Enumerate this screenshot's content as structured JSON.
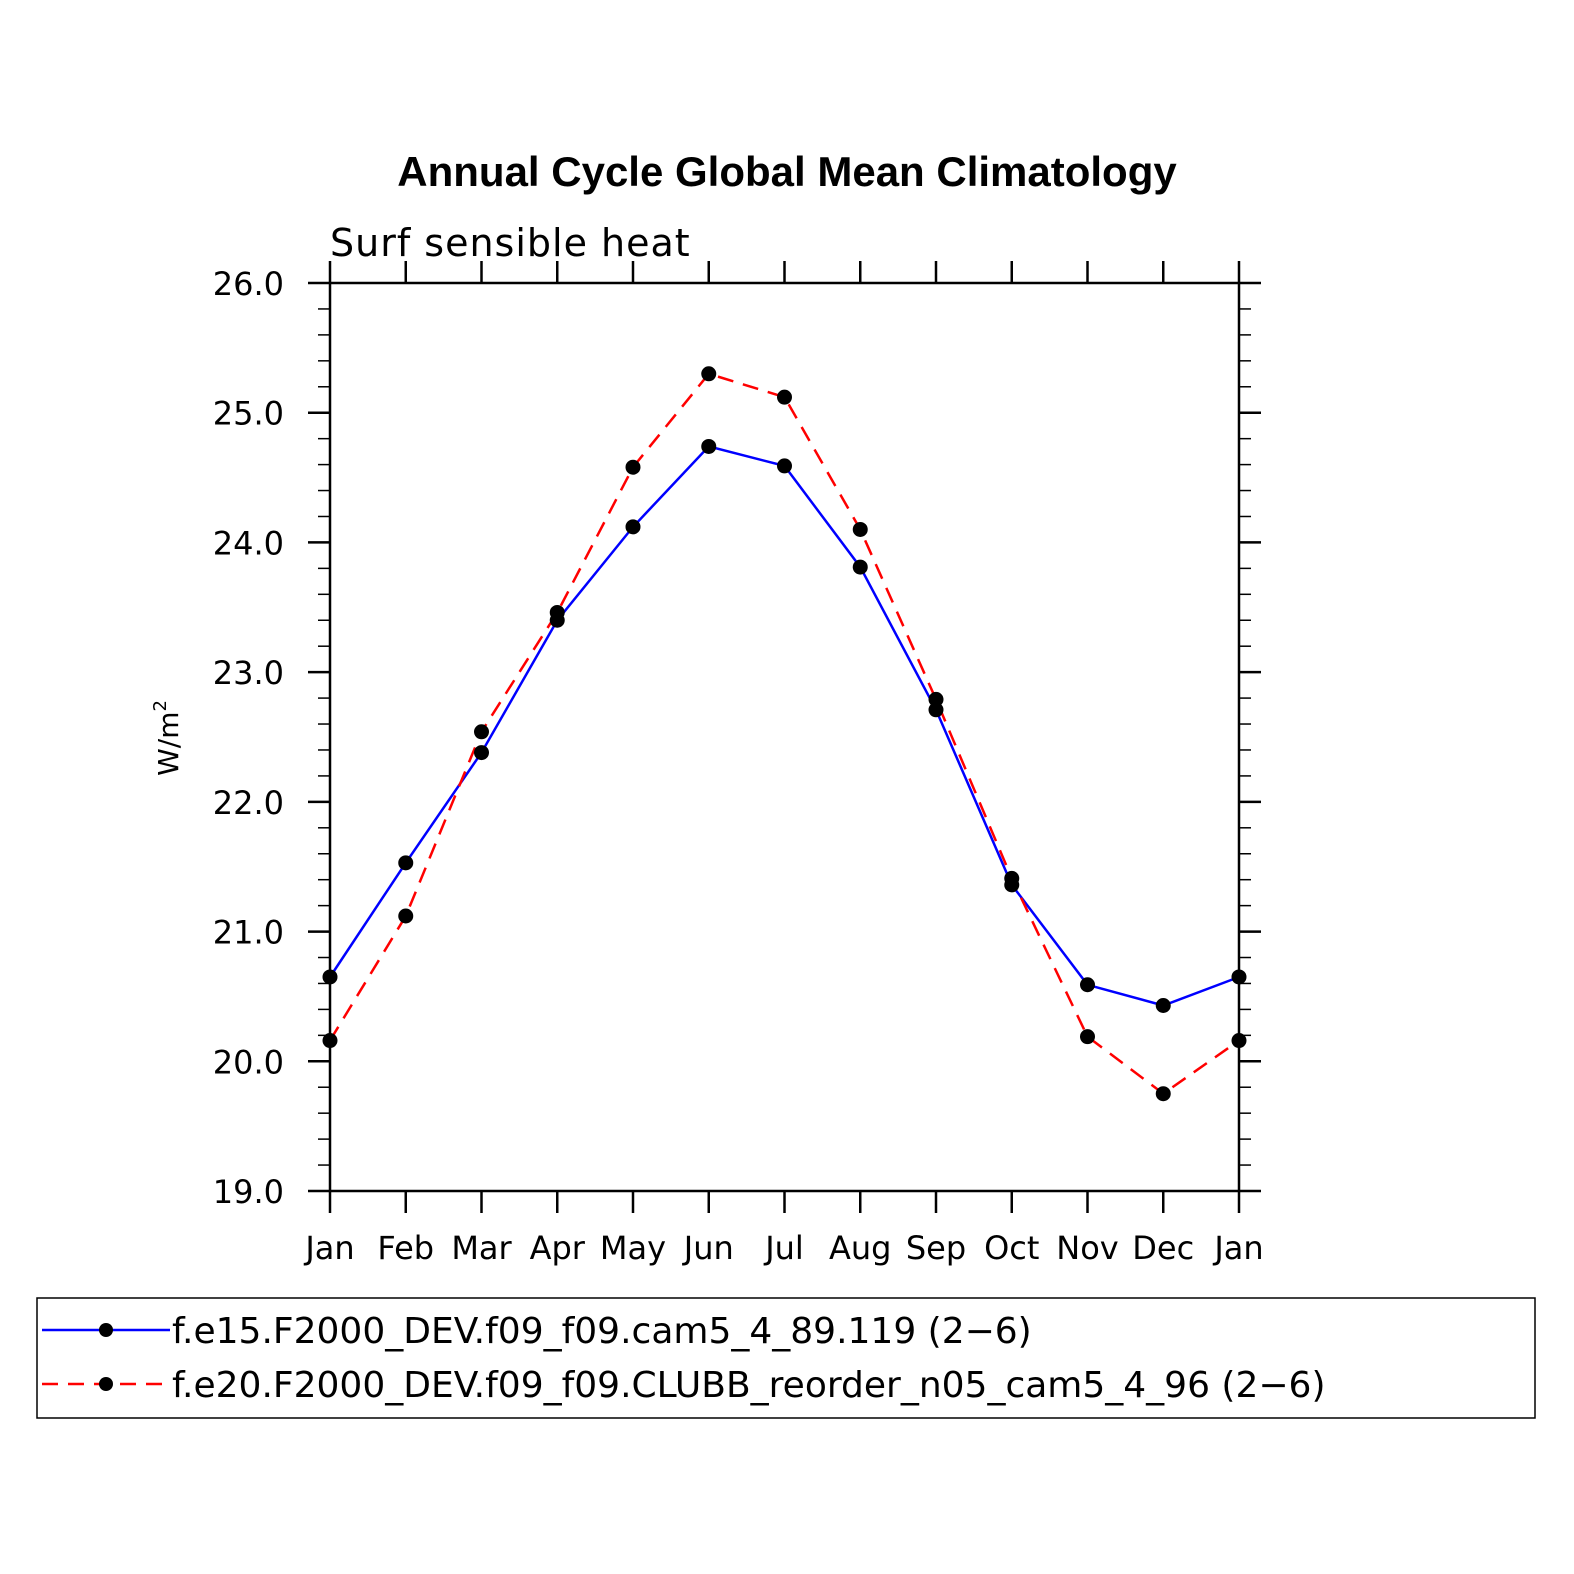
{
  "chart_data": {
    "type": "line",
    "title": "Annual Cycle Global Mean Climatology",
    "subtitle": "Surf sensible heat",
    "xlabel": "",
    "ylabel": "W/m",
    "ylabel_sup": "2",
    "ylim": [
      19.0,
      26.0
    ],
    "yticks": [
      19.0,
      20.0,
      21.0,
      22.0,
      23.0,
      24.0,
      25.0,
      26.0
    ],
    "ytick_labels": [
      "19.0",
      "20.0",
      "21.0",
      "22.0",
      "23.0",
      "24.0",
      "25.0",
      "26.0"
    ],
    "categories": [
      "Jan",
      "Feb",
      "Mar",
      "Apr",
      "May",
      "Jun",
      "Jul",
      "Aug",
      "Sep",
      "Oct",
      "Nov",
      "Dec",
      "Jan"
    ],
    "series": [
      {
        "name": "f.e15.F2000_DEV.f09_f09.cam5_4_89.119 (2−6)",
        "color": "#0000ff",
        "dash": "solid",
        "values": [
          20.65,
          21.53,
          22.38,
          23.4,
          24.12,
          24.74,
          24.59,
          23.81,
          22.71,
          21.36,
          20.59,
          20.43,
          20.65
        ]
      },
      {
        "name": "f.e20.F2000_DEV.f09_f09.CLUBB_reorder_n05_cam5_4_96 (2−6)",
        "color": "#ff0000",
        "dash": "dashed",
        "values": [
          20.16,
          21.12,
          22.54,
          23.46,
          24.58,
          25.3,
          25.12,
          24.1,
          22.79,
          21.41,
          20.19,
          19.75,
          20.16
        ]
      }
    ],
    "grid": false,
    "legend_position": "bottom"
  }
}
